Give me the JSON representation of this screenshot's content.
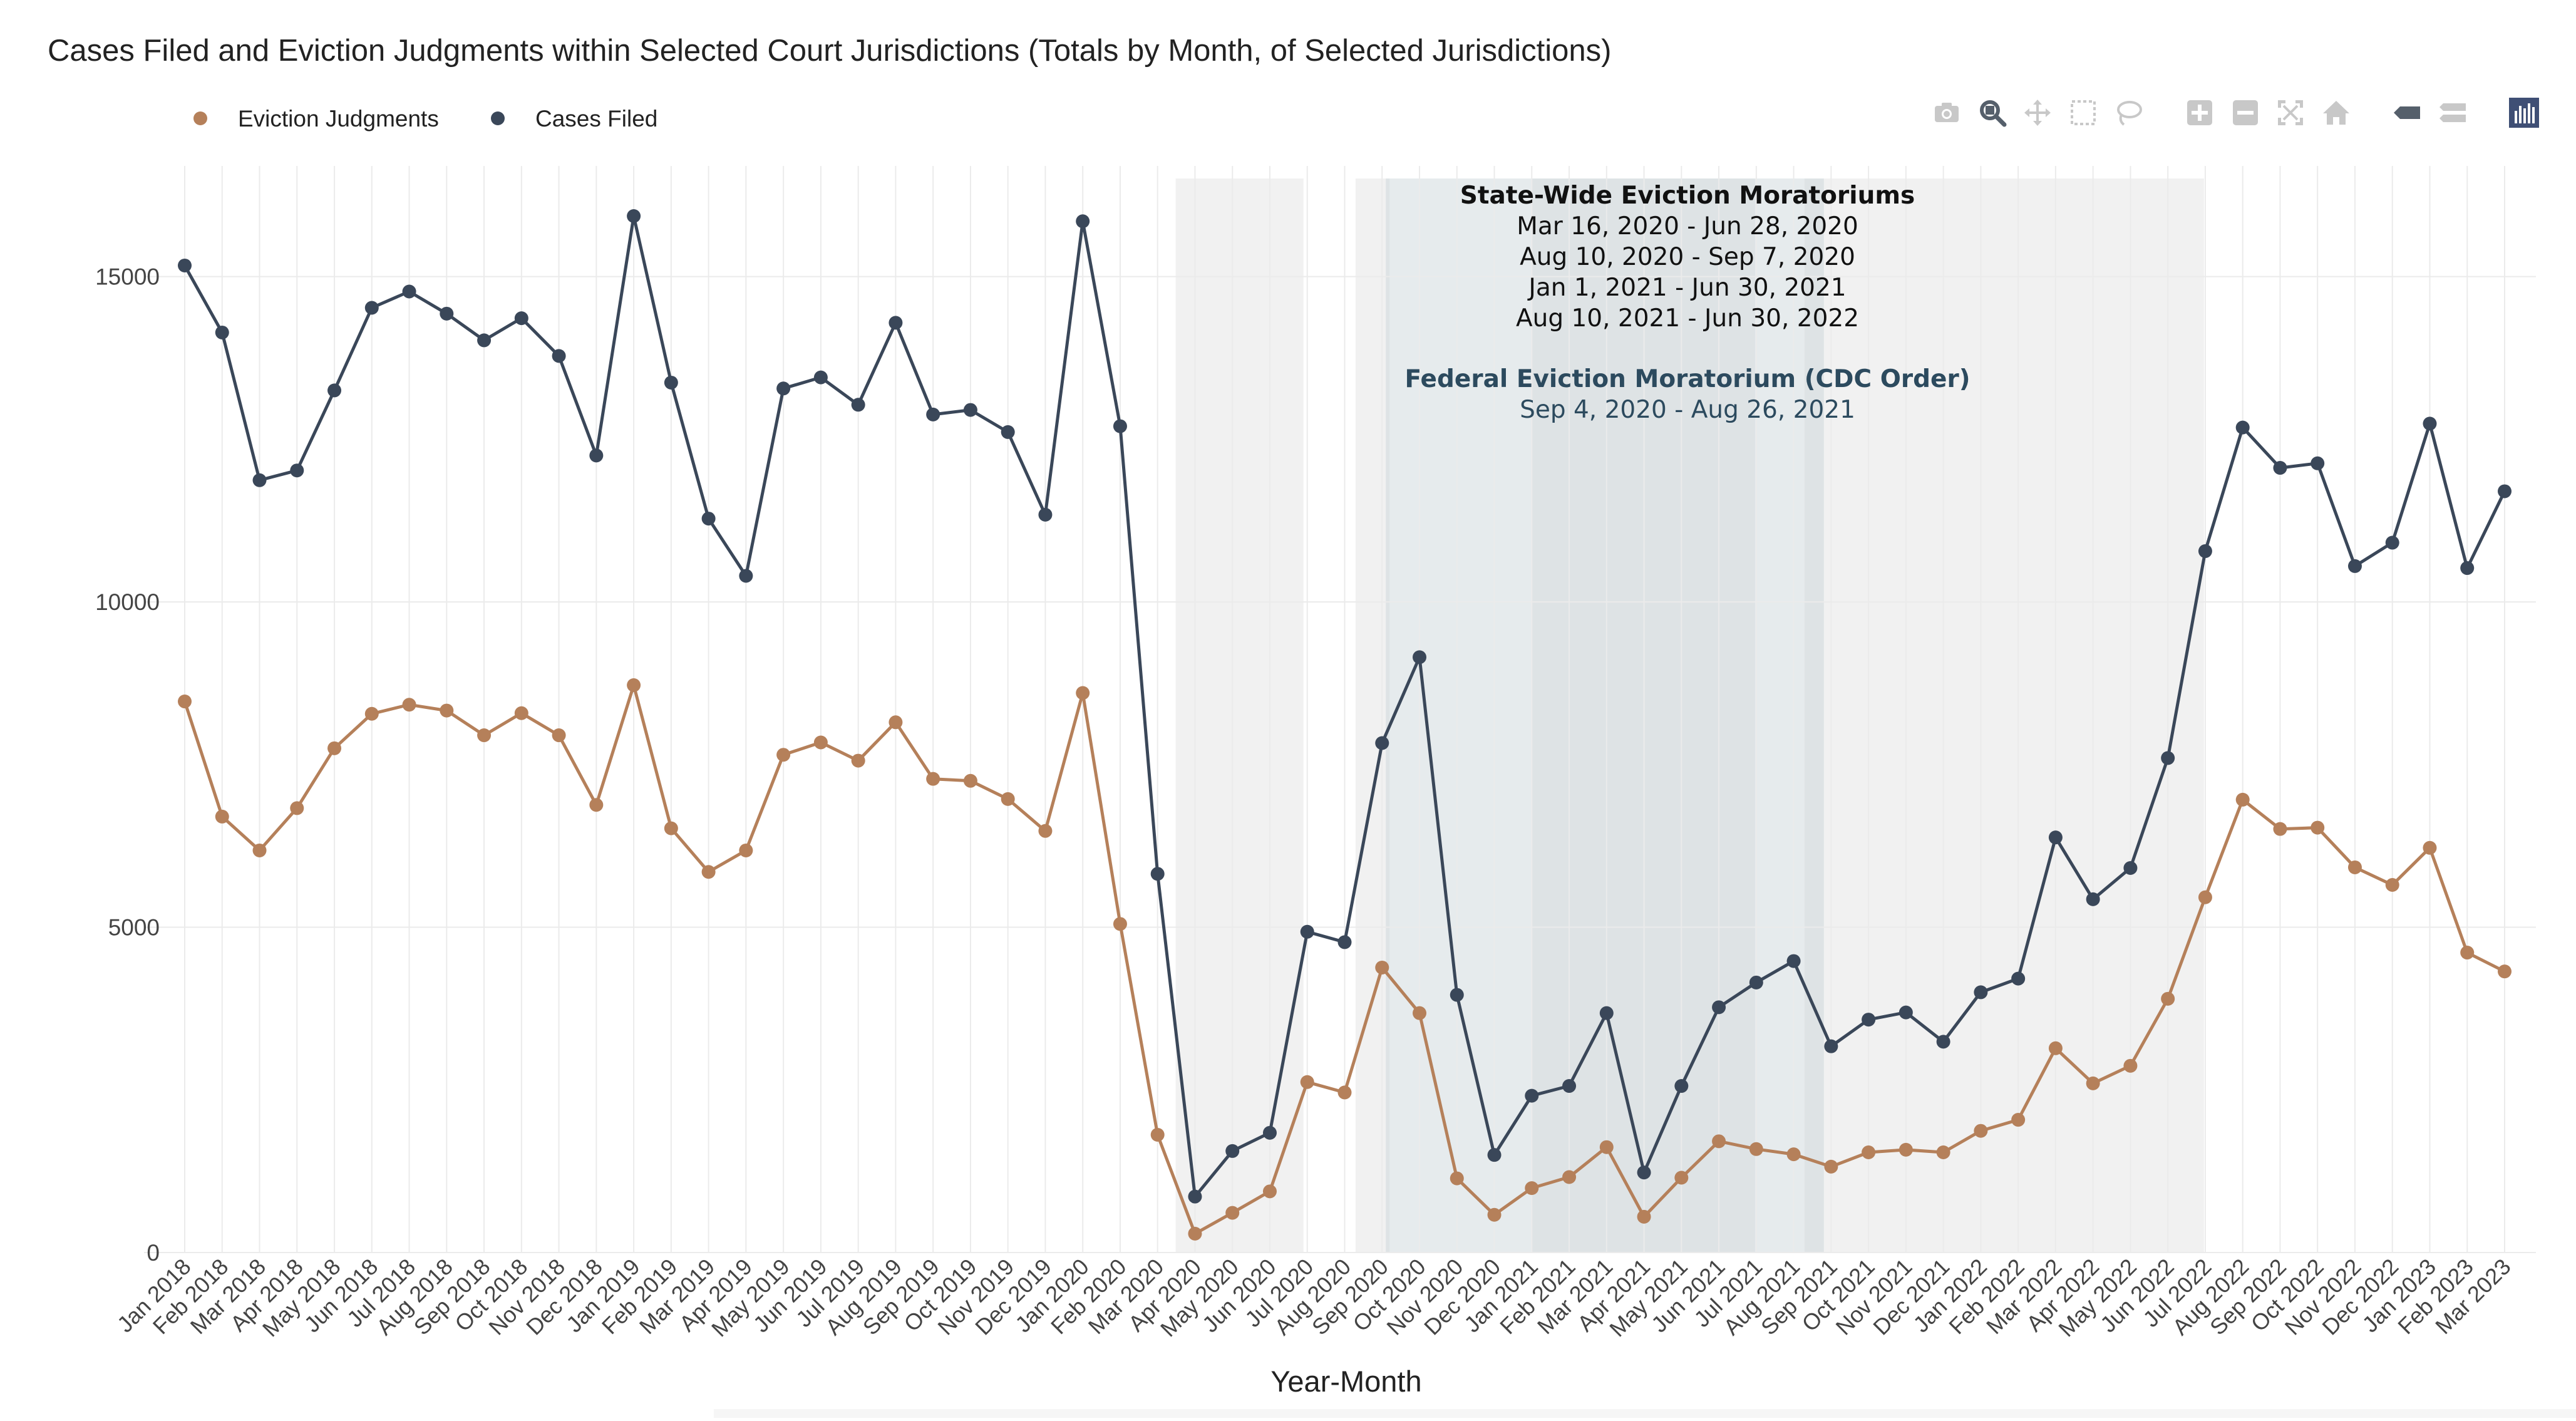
{
  "chart_data": {
    "type": "line",
    "title": "Cases Filed and Eviction Judgments within Selected Court Jurisdictions (Totals by Month, of Selected Jurisdictions)",
    "xlabel": "Year-Month",
    "ylabel": "",
    "ylim": [
      0,
      16700
    ],
    "yticks": [
      0,
      5000,
      10000,
      15000
    ],
    "grid": true,
    "legend_position": "top-left",
    "categories": [
      "Jan 2018",
      "Feb 2018",
      "Mar 2018",
      "Apr 2018",
      "May 2018",
      "Jun 2018",
      "Jul 2018",
      "Aug 2018",
      "Sep 2018",
      "Oct 2018",
      "Nov 2018",
      "Dec 2018",
      "Jan 2019",
      "Feb 2019",
      "Mar 2019",
      "Apr 2019",
      "May 2019",
      "Jun 2019",
      "Jul 2019",
      "Aug 2019",
      "Sep 2019",
      "Oct 2019",
      "Nov 2019",
      "Dec 2019",
      "Jan 2020",
      "Feb 2020",
      "Mar 2020",
      "Apr 2020",
      "May 2020",
      "Jun 2020",
      "Jul 2020",
      "Aug 2020",
      "Sep 2020",
      "Oct 2020",
      "Nov 2020",
      "Dec 2020",
      "Jan 2021",
      "Feb 2021",
      "Mar 2021",
      "Apr 2021",
      "May 2021",
      "Jun 2021",
      "Jul 2021",
      "Aug 2021",
      "Sep 2021",
      "Oct 2021",
      "Nov 2021",
      "Dec 2021",
      "Jan 2022",
      "Feb 2022",
      "Mar 2022",
      "Apr 2022",
      "May 2022",
      "Jun 2022",
      "Jul 2022",
      "Aug 2022",
      "Sep 2022",
      "Oct 2022",
      "Nov 2022",
      "Dec 2022",
      "Jan 2023",
      "Feb 2023",
      "Mar 2023"
    ],
    "series": [
      {
        "name": "Eviction Judgments",
        "color": "#b5805a",
        "values": [
          8470,
          6700,
          6180,
          6830,
          7750,
          8280,
          8420,
          8330,
          7950,
          8290,
          7950,
          6880,
          8720,
          6520,
          5850,
          6180,
          7650,
          7840,
          7560,
          8150,
          7280,
          7250,
          6970,
          6480,
          8600,
          5050,
          1810,
          290,
          610,
          940,
          2620,
          2460,
          4380,
          3680,
          1140,
          580,
          990,
          1160,
          1620,
          550,
          1150,
          1710,
          1590,
          1510,
          1320,
          1540,
          1580,
          1540,
          1870,
          2040,
          3140,
          2600,
          2870,
          3900,
          5460,
          6960,
          6510,
          6530,
          5920,
          5650,
          6220,
          4610,
          4320
        ]
      },
      {
        "name": "Cases Filed",
        "color": "#3a4759",
        "values": [
          15170,
          14140,
          11870,
          12020,
          13250,
          14520,
          14770,
          14430,
          14020,
          14360,
          13780,
          12250,
          15930,
          13370,
          11280,
          10400,
          13280,
          13450,
          13030,
          14290,
          12880,
          12950,
          12610,
          11340,
          15850,
          12700,
          5820,
          860,
          1560,
          1840,
          4930,
          4770,
          7830,
          9150,
          3960,
          1500,
          2410,
          2560,
          3680,
          1230,
          2560,
          3770,
          4150,
          4480,
          3170,
          3580,
          3690,
          3240,
          4000,
          4210,
          6380,
          5430,
          5910,
          7600,
          10780,
          12680,
          12060,
          12130,
          10550,
          10910,
          12740,
          10520,
          11700
        ]
      }
    ],
    "shaded_periods": [
      {
        "start": "Mar 16, 2020",
        "end": "Jun 28, 2020",
        "color": "#e9e9e9"
      },
      {
        "start": "Aug 10, 2020",
        "end": "Sep 7, 2020",
        "color": "#e9e9e9"
      },
      {
        "start": "Jan 1, 2021",
        "end": "Jun 30, 2021",
        "color": "#e9e9e9"
      },
      {
        "start": "Aug 10, 2021",
        "end": "Jun 30, 2022",
        "color": "#e9e9e9"
      },
      {
        "start": "Sep 4, 2020",
        "end": "Aug 26, 2021",
        "color": "#c8d3d8"
      }
    ],
    "annotation": {
      "state_title": "State-Wide Eviction Moratoriums",
      "state_lines": [
        "Mar 16, 2020 - Jun 28, 2020",
        "Aug 10, 2020 - Sep 7, 2020",
        "Jan 1, 2021 - Jun 30, 2021",
        "Aug 10, 2021 - Jun 30, 2022"
      ],
      "federal_title": "Federal Eviction Moratorium (CDC Order)",
      "federal_line": "Sep 4, 2020 - Aug 26, 2021",
      "federal_color": "#2c4a5e"
    }
  },
  "modebar": {
    "icons": [
      "camera-icon",
      "zoom-icon",
      "pan-icon",
      "box-select-icon",
      "lasso-icon",
      "zoom-in-icon",
      "zoom-out-icon",
      "autoscale-icon",
      "reset-axes-icon",
      "hover-closest-icon",
      "hover-compare-icon",
      "plotly-logo-icon"
    ],
    "icon_color": "#c8c8c8",
    "active_color": "#555f6b",
    "logo_color": "#3f4f75"
  }
}
